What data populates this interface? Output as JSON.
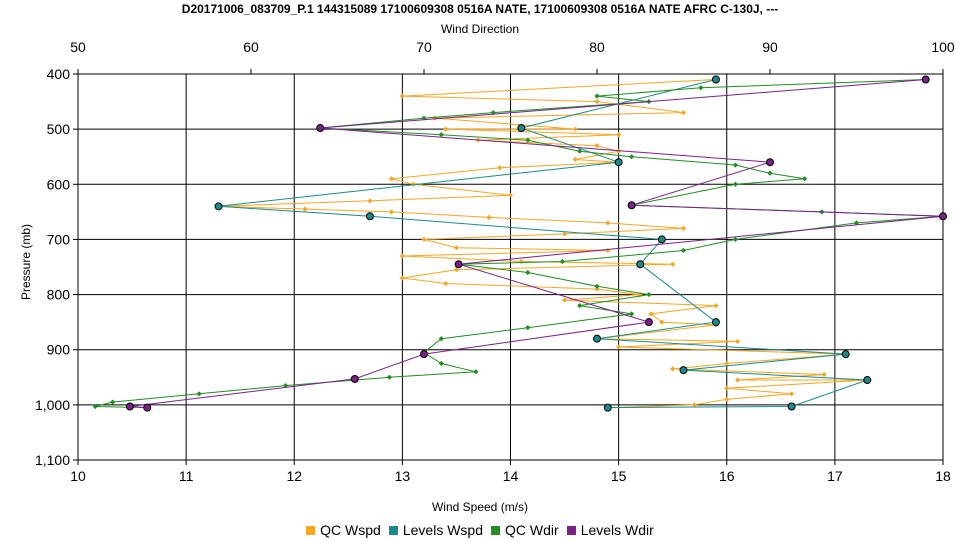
{
  "chart_data": {
    "type": "line",
    "title": "D20171006_083709_P.1 144315089 17100609308 0516A NATE, 17100609308 0516A NATE AFRC C-130J, ---",
    "xlabel": "Wind Speed (m/s)",
    "x2label": "Wind Direction",
    "ylabel": "Pressure (mb)",
    "xlim": [
      10,
      18
    ],
    "x2lim": [
      50,
      100
    ],
    "ylim": [
      400,
      1100
    ],
    "y_inverted": true,
    "grid": true,
    "xticks": [
      "10",
      "11",
      "12",
      "13",
      "14",
      "15",
      "16",
      "17",
      "18"
    ],
    "x2ticks": [
      "50",
      "60",
      "70",
      "80",
      "90",
      "100"
    ],
    "yticks": [
      "400",
      "500",
      "600",
      "700",
      "800",
      "900",
      "1,000",
      "1,100"
    ],
    "legend_position": "bottom",
    "series": [
      {
        "name": "QC Wspd",
        "axis": "bottom",
        "color": "#F5A623",
        "marker": "diamond",
        "points": [
          [
            15.9,
            410
          ],
          [
            13.0,
            440
          ],
          [
            14.8,
            450
          ],
          [
            15.6,
            470
          ],
          [
            13.3,
            480
          ],
          [
            14.6,
            500
          ],
          [
            13.4,
            500
          ],
          [
            15.0,
            510
          ],
          [
            13.7,
            520
          ],
          [
            14.8,
            530
          ],
          [
            15.0,
            540
          ],
          [
            14.6,
            555
          ],
          [
            15.0,
            560
          ],
          [
            13.9,
            570
          ],
          [
            12.9,
            590
          ],
          [
            13.1,
            600
          ],
          [
            14.0,
            620
          ],
          [
            12.7,
            630
          ],
          [
            11.3,
            640
          ],
          [
            12.1,
            645
          ],
          [
            12.9,
            650
          ],
          [
            13.8,
            660
          ],
          [
            14.9,
            670
          ],
          [
            15.6,
            680
          ],
          [
            14.5,
            690
          ],
          [
            13.2,
            700
          ],
          [
            13.5,
            715
          ],
          [
            14.9,
            720
          ],
          [
            13.0,
            730
          ],
          [
            14.1,
            740
          ],
          [
            15.5,
            745
          ],
          [
            13.5,
            755
          ],
          [
            13.0,
            770
          ],
          [
            13.4,
            780
          ],
          [
            14.8,
            790
          ],
          [
            15.2,
            800
          ],
          [
            14.5,
            810
          ],
          [
            15.9,
            820
          ],
          [
            15.3,
            835
          ],
          [
            15.4,
            850
          ],
          [
            15.9,
            855
          ],
          [
            14.8,
            880
          ],
          [
            16.1,
            885
          ],
          [
            15.0,
            895
          ],
          [
            17.1,
            908
          ],
          [
            16.0,
            925
          ],
          [
            15.5,
            935
          ],
          [
            16.9,
            945
          ],
          [
            16.1,
            955
          ],
          [
            17.3,
            955
          ],
          [
            16.0,
            970
          ],
          [
            16.6,
            980
          ],
          [
            16.0,
            990
          ],
          [
            15.7,
            1000
          ],
          [
            14.9,
            1005
          ]
        ]
      },
      {
        "name": "Levels Wspd",
        "axis": "bottom",
        "color": "#1A8A8A",
        "marker": "circle",
        "points": [
          [
            15.9,
            410
          ],
          [
            14.1,
            498
          ],
          [
            15.0,
            560
          ],
          [
            11.3,
            640
          ],
          [
            12.7,
            658
          ],
          [
            15.4,
            700
          ],
          [
            15.2,
            745
          ],
          [
            15.9,
            850
          ],
          [
            14.8,
            880
          ],
          [
            17.1,
            908
          ],
          [
            15.6,
            937
          ],
          [
            17.3,
            955
          ],
          [
            16.6,
            1003
          ],
          [
            14.9,
            1005
          ]
        ]
      },
      {
        "name": "QC Wdir",
        "axis": "top",
        "color": "#1F8F1F",
        "marker": "diamond",
        "points": [
          [
            99.0,
            410
          ],
          [
            86.0,
            425
          ],
          [
            80.0,
            440
          ],
          [
            83.0,
            450
          ],
          [
            74.0,
            470
          ],
          [
            70.0,
            480
          ],
          [
            64.0,
            498
          ],
          [
            71.0,
            510
          ],
          [
            76.0,
            520
          ],
          [
            79.0,
            540
          ],
          [
            82.0,
            550
          ],
          [
            88.0,
            565
          ],
          [
            90.0,
            580
          ],
          [
            92.0,
            590
          ],
          [
            88.0,
            600
          ],
          [
            82.0,
            638
          ],
          [
            93.0,
            650
          ],
          [
            100.0,
            658
          ],
          [
            95.0,
            670
          ],
          [
            88.0,
            700
          ],
          [
            85.0,
            720
          ],
          [
            78.0,
            740
          ],
          [
            72.0,
            745
          ],
          [
            76.0,
            760
          ],
          [
            80.0,
            785
          ],
          [
            83.0,
            800
          ],
          [
            79.0,
            820
          ],
          [
            82.0,
            835
          ],
          [
            76.0,
            860
          ],
          [
            71.0,
            880
          ],
          [
            70.0,
            905
          ],
          [
            71.0,
            925
          ],
          [
            73.0,
            940
          ],
          [
            68.0,
            950
          ],
          [
            62.0,
            965
          ],
          [
            57.0,
            980
          ],
          [
            52.0,
            995
          ],
          [
            51.0,
            1003
          ],
          [
            54.0,
            1005
          ]
        ]
      },
      {
        "name": "Levels Wdir",
        "axis": "top",
        "color": "#7B1F8C",
        "marker": "circle",
        "points": [
          [
            99.0,
            410
          ],
          [
            64.0,
            498
          ],
          [
            90.0,
            560
          ],
          [
            82.0,
            638
          ],
          [
            100.0,
            658
          ],
          [
            72.0,
            745
          ],
          [
            83.0,
            850
          ],
          [
            70.0,
            908
          ],
          [
            66.0,
            953
          ],
          [
            53.0,
            1003
          ],
          [
            54.0,
            1005
          ]
        ]
      }
    ]
  }
}
